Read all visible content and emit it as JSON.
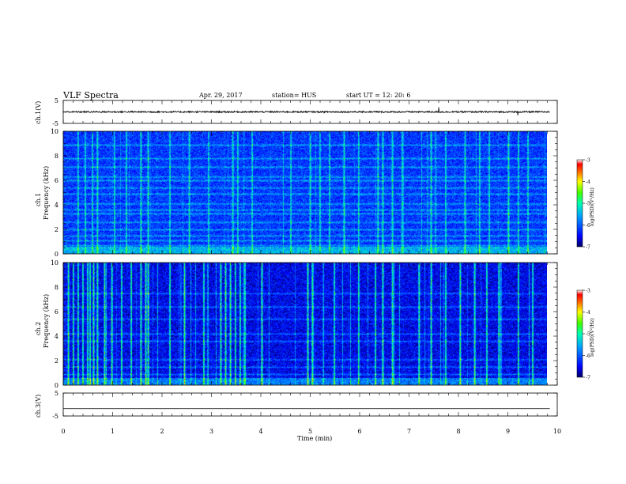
{
  "header": {
    "title": "VLF Spectra",
    "date": "Apr. 29, 2017",
    "station": "station= HUS",
    "start": "start  UT  =   12: 20: 6"
  },
  "chart_data": [
    {
      "type": "line",
      "panel": "ch1-voltage",
      "ylabel": "ch.1(V)",
      "ylim": [
        -5,
        5
      ],
      "yticks": [
        "5",
        "-5"
      ],
      "baseline": 0,
      "noise_amplitude": 0.35,
      "spikes": [
        {
          "x": 7.6,
          "y": 2.0
        },
        {
          "x": 9.2,
          "y": -1.5
        }
      ],
      "xlim": [
        0,
        10
      ]
    },
    {
      "type": "heatmap",
      "panel": "ch1-spectrogram",
      "ylabel_top": "ch.1",
      "ylabel": "Frequency (kHz)",
      "ylim": [
        0,
        10
      ],
      "yticks": [
        "0",
        "2",
        "4",
        "6",
        "8",
        "10"
      ],
      "xlim": [
        0,
        10
      ],
      "colorbar": {
        "label": "log(PSD)(V²/Hz)",
        "range": [
          -7,
          -3
        ],
        "ticks": [
          "-3",
          "-4",
          "-5",
          "-6",
          "-7"
        ]
      },
      "bright_bands_khz": [
        0.3,
        0.7,
        1.1,
        1.5,
        2.0,
        2.6,
        3.3,
        3.6,
        4.1,
        4.9,
        5.4,
        6.0,
        6.3,
        7.1,
        7.8,
        8.9
      ],
      "bright_times_min": [
        0.3,
        0.45,
        0.6,
        0.7,
        1.05,
        1.3,
        1.6,
        1.75,
        2.2,
        2.6,
        3.0,
        3.5,
        3.6,
        3.9,
        4.7,
        5.1,
        5.3,
        5.5,
        5.8,
        6.1,
        6.5,
        6.6,
        6.8,
        7.0,
        7.6,
        7.9,
        8.3,
        8.6,
        8.8,
        9.2,
        9.4,
        9.6
      ]
    },
    {
      "type": "heatmap",
      "panel": "ch2-spectrogram",
      "ylabel_top": "ch.2",
      "ylabel": "Frequency (kHz)",
      "ylim": [
        0,
        10
      ],
      "yticks": [
        "0",
        "2",
        "4",
        "6",
        "8",
        "10"
      ],
      "xlim": [
        0,
        10
      ],
      "colorbar": {
        "label": "log(PSD)(V²/Hz)",
        "range": [
          -7,
          -3
        ],
        "ticks": [
          "-3",
          "-4",
          "-5",
          "-6",
          "-7"
        ]
      },
      "bright_bands_khz": [
        0.4,
        0.9,
        1.5,
        2.1,
        3.6,
        4.2,
        5.4,
        6.4,
        7.5
      ],
      "bright_times_min": [
        0.1,
        0.2,
        0.3,
        0.4,
        0.5,
        0.55,
        0.62,
        0.7,
        0.85,
        1.0,
        1.2,
        1.4,
        1.6,
        1.7,
        1.75,
        2.2,
        2.5,
        2.9,
        3.25,
        3.35,
        3.45,
        3.55,
        3.65,
        3.75,
        4.1,
        5.05,
        5.15,
        5.6,
        6.1,
        6.45,
        6.6,
        6.8,
        7.35,
        7.6,
        7.9,
        8.2,
        8.5,
        8.75,
        9.0,
        9.4,
        9.7
      ]
    },
    {
      "type": "line",
      "panel": "ch3-voltage",
      "ylabel": "ch.3(V)",
      "ylim": [
        -5,
        5
      ],
      "yticks": [
        "5",
        "-5"
      ],
      "baseline": -1.8,
      "noise_amplitude": 0,
      "xlim": [
        0,
        10
      ],
      "xlabel": "Time  (min)",
      "xticks": [
        "0",
        "1",
        "2",
        "3",
        "4",
        "5",
        "6",
        "7",
        "8",
        "9",
        "10"
      ]
    }
  ]
}
